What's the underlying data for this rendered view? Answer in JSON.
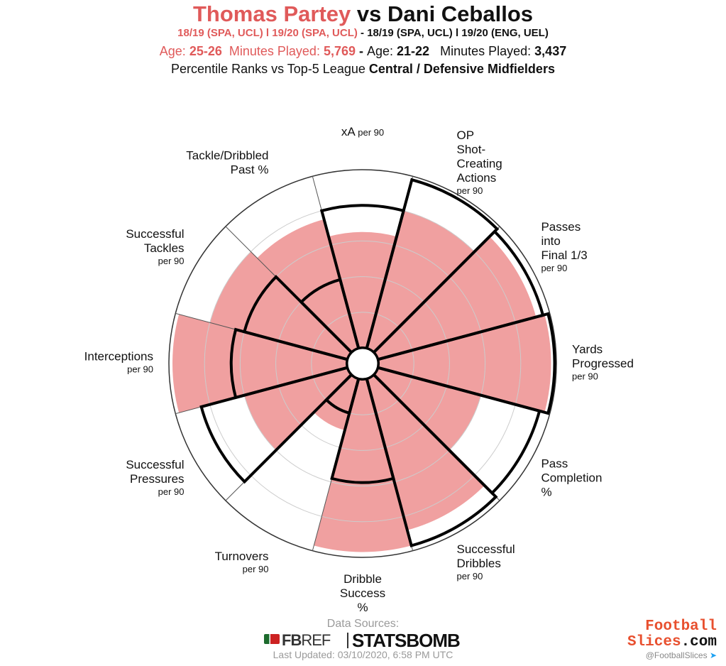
{
  "header": {
    "player1": "Thomas Partey",
    "vs": "vs",
    "player2": "Dani Ceballos",
    "seasons1": "18/19 (SPA, UCL)  l 19/20 (SPA, UCL)",
    "seasons_sep": " - ",
    "seasons2": "18/19 (SPA, UCL)  l 19/20 (ENG, UEL)",
    "age_label": "Age: ",
    "age1": "25-26",
    "minutes_label": "Minutes Played: ",
    "minutes1": "5,769",
    "dash": " - ",
    "age2": "21-22",
    "minutes2": "3,437",
    "subtitle_prefix": "Percentile Ranks vs Top-5 League ",
    "subtitle_bold": "Central / Defensive Midfielders"
  },
  "colors": {
    "player1": "#f0a0a0",
    "player1_text": "#e05a5a",
    "player2_outline": "#000000",
    "grid": "#cccccc",
    "wedge_border": "#555555"
  },
  "chart_data": {
    "type": "polar-bar",
    "scale": [
      0,
      100
    ],
    "start_angle_deg": 270,
    "metrics": [
      {
        "name": "xA",
        "unit": "per 90",
        "p1": 65,
        "p2": 80,
        "lines": [
          "xA"
        ],
        "sub_inline": true
      },
      {
        "name": "OP Shot-Creating Actions",
        "unit": "per 90",
        "p1": 80,
        "p2": 98,
        "lines": [
          "OP",
          "Shot-",
          "Creating",
          "Actions"
        ]
      },
      {
        "name": "Passes into Final 1/3",
        "unit": "per 90",
        "p1": 92,
        "p2": 96,
        "lines": [
          "Passes",
          "into",
          "Final 1/3"
        ]
      },
      {
        "name": "Yards Progressed",
        "unit": "per 90",
        "p1": 97,
        "p2": 99,
        "lines": [
          "Yards",
          "Progressed"
        ]
      },
      {
        "name": "Pass Completion %",
        "unit": "",
        "p1": 60,
        "p2": 94,
        "lines": [
          "Pass",
          "Completion",
          "%"
        ]
      },
      {
        "name": "Successful Dribbles",
        "unit": "per 90",
        "p1": 88,
        "p2": 97,
        "lines": [
          "Successful",
          "Dribbles"
        ]
      },
      {
        "name": "Dribble Success %",
        "unit": "",
        "p1": 97,
        "p2": 58,
        "lines": [
          "Dribble",
          "Success",
          "%"
        ]
      },
      {
        "name": "Turnovers",
        "unit": "per 90",
        "p1": 30,
        "p2": 20,
        "lines": [
          "Turnovers"
        ]
      },
      {
        "name": "Successful Pressures",
        "unit": "per 90",
        "p1": 60,
        "p2": 85,
        "lines": [
          "Successful",
          "Pressures"
        ]
      },
      {
        "name": "Interceptions",
        "unit": "per 90",
        "p1": 98,
        "p2": 65,
        "lines": [
          "Interceptions"
        ]
      },
      {
        "name": "Successful Tackles",
        "unit": "per 90",
        "p1": 80,
        "p2": 60,
        "lines": [
          "Successful",
          "Tackles"
        ]
      },
      {
        "name": "Tackle/Dribbled Past %",
        "unit": "",
        "p1": 75,
        "p2": 40,
        "lines": [
          "Tackle/Dribbled",
          "Past %"
        ]
      }
    ]
  },
  "footer": {
    "sources_label": "Data Sources:",
    "fbref_fb": "FB",
    "fbref_ref": "REF",
    "statsbomb": "STATSBOMB",
    "updated": "Last Updated: 03/10/2020, 6:58 PM UTC",
    "fs_line1": "Football",
    "fs_line2a": "Slices",
    "fs_line2b": ".com",
    "fs_handle": "@FootballSlices"
  }
}
